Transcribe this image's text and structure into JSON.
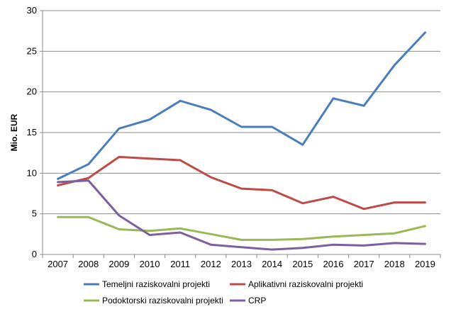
{
  "chart_data": {
    "type": "line",
    "title": "",
    "xlabel": "",
    "ylabel": "Mio. EUR",
    "ylim": [
      0,
      30
    ],
    "yticks": [
      0,
      5,
      10,
      15,
      20,
      25,
      30
    ],
    "grid": "horizontal",
    "legend_position": "bottom",
    "categories": [
      "2007",
      "2008",
      "2009",
      "2010",
      "2011",
      "2012",
      "2013",
      "2014",
      "2015",
      "2016",
      "2017",
      "2018",
      "2019"
    ],
    "series": [
      {
        "name": "Temeljni raziskovalni projekti",
        "color": "#4a7ebb",
        "values": [
          9.3,
          11.1,
          15.5,
          16.6,
          18.9,
          17.8,
          15.7,
          15.7,
          13.5,
          19.2,
          18.3,
          23.3,
          27.3
        ]
      },
      {
        "name": "Aplikativni raziskovalni projekti",
        "color": "#be4b48",
        "values": [
          8.5,
          9.4,
          12.0,
          11.8,
          11.6,
          9.5,
          8.1,
          7.9,
          6.3,
          7.1,
          5.6,
          6.4,
          6.4
        ]
      },
      {
        "name": "Podoktorski raziskovalni projekti",
        "color": "#98b954",
        "values": [
          4.6,
          4.6,
          3.1,
          2.9,
          3.2,
          2.5,
          1.8,
          1.8,
          1.9,
          2.2,
          2.4,
          2.6,
          3.5
        ]
      },
      {
        "name": "CRP",
        "color": "#7d5fa0",
        "values": [
          8.9,
          9.1,
          4.8,
          2.4,
          2.7,
          1.2,
          0.9,
          0.6,
          0.8,
          1.2,
          1.1,
          1.4,
          1.3
        ]
      }
    ]
  }
}
